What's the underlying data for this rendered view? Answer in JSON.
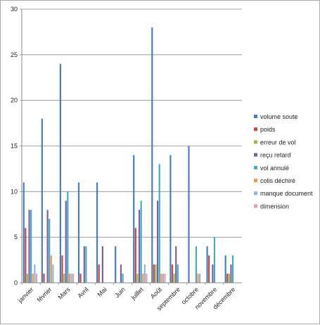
{
  "chart_data": {
    "type": "bar",
    "categories": [
      "janvier",
      "février",
      "Mars",
      "Avril",
      "Mai",
      "Juin",
      "juillet",
      "Août",
      "septembre",
      "octobre",
      "novembre",
      "décembre"
    ],
    "series": [
      {
        "name": "volume soute",
        "color": "#4a7ebb",
        "values": [
          11,
          18,
          24,
          11,
          11,
          4,
          14,
          28,
          14,
          15,
          4,
          3
        ]
      },
      {
        "name": "poids",
        "color": "#be4b48",
        "values": [
          6,
          1,
          3,
          1,
          2,
          0,
          6,
          2,
          2,
          0,
          3,
          1
        ]
      },
      {
        "name": "erreur de vol",
        "color": "#98b954",
        "values": [
          1,
          0,
          1,
          0,
          0,
          0,
          1,
          2,
          1,
          0,
          0,
          1
        ]
      },
      {
        "name": "reçu retard",
        "color": "#7d60a0",
        "values": [
          8,
          8,
          9,
          4,
          4,
          2,
          8,
          9,
          4,
          0,
          2,
          2
        ]
      },
      {
        "name": "vol annulé",
        "color": "#46aac4",
        "values": [
          8,
          7,
          10,
          4,
          0,
          1,
          9,
          13,
          2,
          4,
          5,
          3
        ]
      },
      {
        "name": "colis déchiré",
        "color": "#f79646",
        "values": [
          1,
          3,
          1,
          0,
          0,
          0,
          1,
          1,
          0,
          1,
          0,
          0
        ]
      },
      {
        "name": "manque document",
        "color": "#8fb4e3",
        "values": [
          2,
          2,
          1,
          0,
          0,
          0,
          2,
          1,
          0,
          1,
          0,
          0
        ]
      },
      {
        "name": "dimension",
        "color": "#e6a0a0",
        "values": [
          1,
          0,
          1,
          0,
          0,
          0,
          1,
          1,
          0,
          0,
          0,
          0
        ]
      }
    ],
    "title": "",
    "xlabel": "",
    "ylabel": "",
    "ylim": [
      0,
      30
    ],
    "yticks": [
      "0",
      "5",
      "10",
      "15",
      "20",
      "25",
      "30"
    ],
    "grid": true,
    "legend_position": "right"
  }
}
